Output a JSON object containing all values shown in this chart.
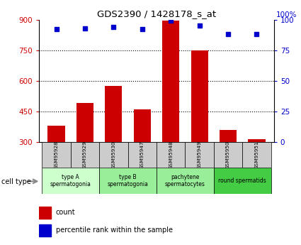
{
  "title": "GDS2390 / 1428178_s_at",
  "samples": [
    "GSM95928",
    "GSM95929",
    "GSM95930",
    "GSM95947",
    "GSM95948",
    "GSM95949",
    "GSM95950",
    "GSM95951"
  ],
  "counts": [
    380,
    490,
    575,
    460,
    895,
    750,
    360,
    315
  ],
  "percentile_ranks": [
    92,
    93,
    94,
    92,
    99,
    95,
    88,
    88
  ],
  "ylim_left": [
    300,
    900
  ],
  "ylim_right": [
    0,
    100
  ],
  "yticks_left": [
    300,
    450,
    600,
    750,
    900
  ],
  "yticks_right": [
    0,
    25,
    50,
    75,
    100
  ],
  "bar_color": "#cc0000",
  "dot_color": "#0000cc",
  "cell_types": [
    {
      "label": "type A\nspermatogonia",
      "indices": [
        0,
        1
      ],
      "color": "#ccffcc"
    },
    {
      "label": "type B\nspermatogonia",
      "indices": [
        2,
        3
      ],
      "color": "#99ee99"
    },
    {
      "label": "pachytene\nspermatocytes",
      "indices": [
        4,
        5
      ],
      "color": "#99ee99"
    },
    {
      "label": "round spermatids",
      "indices": [
        6,
        7
      ],
      "color": "#44cc44"
    }
  ],
  "cell_type_label": "cell type",
  "sample_box_color": "#cccccc",
  "gridline_ticks": [
    450,
    600,
    750
  ],
  "legend_items": [
    {
      "color": "#cc0000",
      "label": "count"
    },
    {
      "color": "#0000cc",
      "label": "percentile rank within the sample"
    }
  ]
}
